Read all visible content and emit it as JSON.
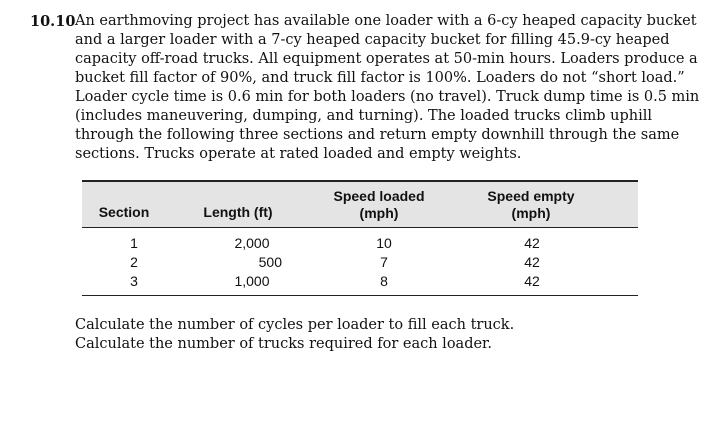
{
  "problem": {
    "number": "10.10",
    "lines": [
      "An earthmoving project has available one loader with a 6-cy heaped capacity bucket",
      "and a larger loader with a 7-cy heaped capacity bucket for filling 45.9-cy heaped",
      "capacity off-road trucks. All equipment operates at 50-min hours. Loaders produce a",
      "bucket fill factor of 90%, and truck fill factor is 100%. Loaders do not “short load.”",
      "Loader cycle time is 0.6 min for both loaders (no travel). Truck dump time is 0.5 min",
      "(includes maneuvering, dumping, and turning). The loaded trucks climb uphill",
      "through the following three sections and return empty downhill through the same",
      "sections. Trucks operate at rated loaded and empty weights."
    ]
  },
  "table": {
    "headers": {
      "section": "Section",
      "length": "Length (ft)",
      "speed_loaded_1": "Speed loaded",
      "speed_loaded_2": "(mph)",
      "speed_empty_1": "Speed empty",
      "speed_empty_2": "(mph)"
    },
    "rows": [
      {
        "section": "1",
        "length": "2,000",
        "loaded": "10",
        "empty": "42"
      },
      {
        "section": "2",
        "length": "500",
        "loaded": "7",
        "empty": "42"
      },
      {
        "section": "3",
        "length": "1,000",
        "loaded": "8",
        "empty": "42"
      }
    ]
  },
  "questions": [
    "Calculate the number of cycles per loader to fill each truck.",
    "Calculate the number of trucks required for each loader."
  ]
}
